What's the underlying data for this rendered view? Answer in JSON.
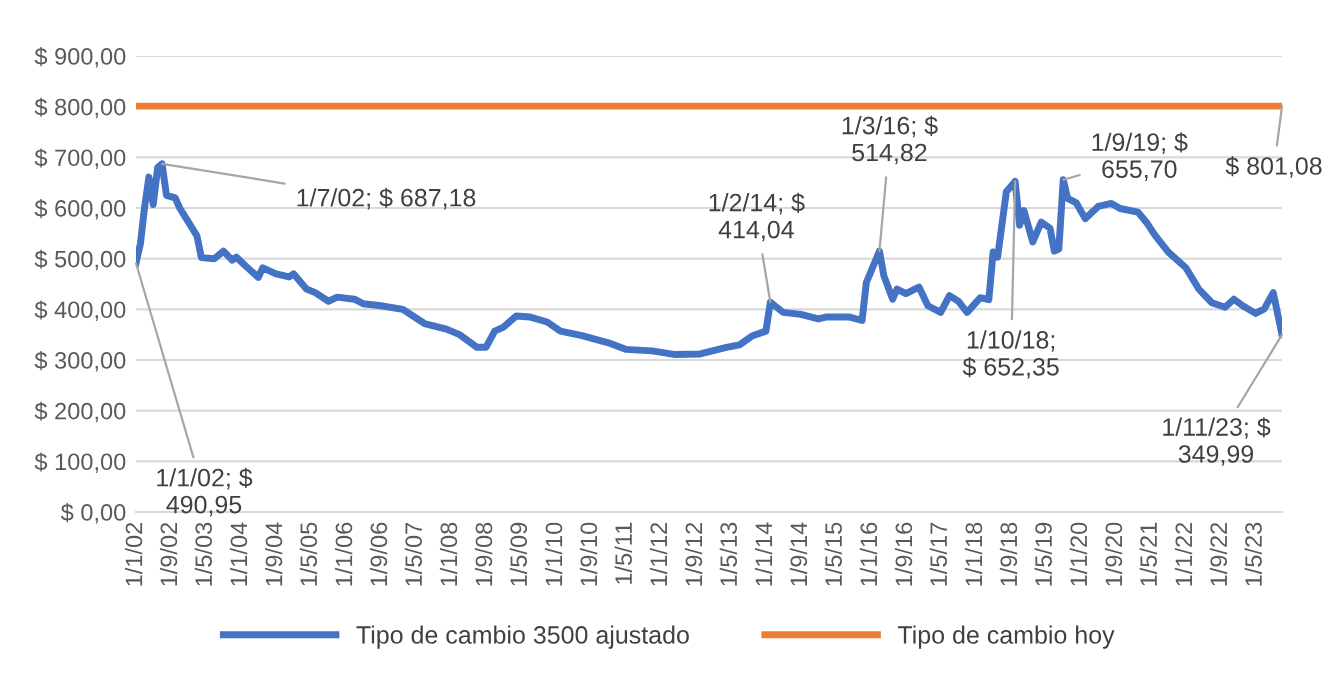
{
  "chart_data": {
    "type": "line",
    "x": [
      "2002-01",
      "2002-02",
      "2002-03",
      "2002-04",
      "2002-05",
      "2002-06",
      "2002-07",
      "2002-08",
      "2002-10",
      "2002-11",
      "2003-01",
      "2003-03",
      "2003-04",
      "2003-07",
      "2003-09",
      "2003-11",
      "2003-12",
      "2004-02",
      "2004-05",
      "2004-06",
      "2004-09",
      "2004-12",
      "2005-01",
      "2005-04",
      "2005-06",
      "2005-09",
      "2005-11",
      "2006-03",
      "2006-05",
      "2006-09",
      "2007-02",
      "2007-07",
      "2007-12",
      "2008-03",
      "2008-07",
      "2008-09",
      "2008-11",
      "2009-01",
      "2009-04",
      "2009-07",
      "2009-11",
      "2010-02",
      "2010-07",
      "2011-01",
      "2011-05",
      "2011-11",
      "2012-04",
      "2012-10",
      "2013-04",
      "2013-07",
      "2013-10",
      "2014-01",
      "2014-02",
      "2014-05",
      "2014-09",
      "2015-01",
      "2015-03",
      "2015-08",
      "2015-11",
      "2015-12",
      "2016-03",
      "2016-04",
      "2016-06",
      "2016-07",
      "2016-09",
      "2016-12",
      "2017-02",
      "2017-05",
      "2017-07",
      "2017-09",
      "2017-11",
      "2018-02",
      "2018-04",
      "2018-05",
      "2018-06",
      "2018-08",
      "2018-10",
      "2018-11",
      "2018-12",
      "2019-02",
      "2019-04",
      "2019-06",
      "2019-07",
      "2019-08",
      "2019-09",
      "2019-10",
      "2019-12",
      "2020-02",
      "2020-05",
      "2020-08",
      "2020-10",
      "2021-02",
      "2021-04",
      "2021-06",
      "2021-09",
      "2022-01",
      "2022-04",
      "2022-07",
      "2022-10",
      "2022-12",
      "2023-02",
      "2023-05",
      "2023-07",
      "2023-09",
      "2023-11"
    ],
    "series": [
      {
        "name": "Tipo de cambio 3500 ajustado",
        "color": "#4472c4",
        "values": [
          490.95,
          530,
          600,
          661,
          607,
          680,
          687.18,
          625,
          620,
          600,
          572,
          545,
          502,
          500,
          515,
          497,
          503,
          486,
          463,
          482,
          470,
          464,
          470,
          440,
          433,
          416,
          424,
          420,
          411,
          407,
          400,
          372,
          361,
          350,
          325,
          325,
          357,
          365,
          387,
          385,
          375,
          357,
          348,
          334,
          321,
          318,
          311,
          312,
          325,
          330,
          348,
          357,
          414.04,
          394,
          390,
          381,
          385,
          385,
          378,
          453,
          514.82,
          466,
          420,
          440,
          431,
          444,
          407,
          394,
          427,
          416,
          394,
          423,
          419,
          513,
          503,
          632,
          652.35,
          566,
          595,
          533,
          572,
          560,
          515,
          519,
          655.7,
          619,
          610,
          579,
          603,
          609,
          599,
          592,
          572,
          546,
          513,
          482,
          440,
          413,
          404,
          420,
          407,
          392,
          401,
          433,
          349.99
        ]
      },
      {
        "name": "Tipo de cambio hoy",
        "color": "#ed7d31",
        "x": [
          "2002-01",
          "2023-11"
        ],
        "values": [
          801.08,
          801.08
        ]
      }
    ],
    "annotations": [
      {
        "text": "1/1/02; $\n490,95",
        "x": "2002-01",
        "y": 490.95
      },
      {
        "text": "1/7/02; $ 687,18",
        "x": "2002-07",
        "y": 687.18
      },
      {
        "text": "1/2/14; $\n414,04",
        "x": "2014-02",
        "y": 414.04
      },
      {
        "text": "1/3/16; $\n514,82",
        "x": "2016-03",
        "y": 514.82
      },
      {
        "text": "1/10/18;\n$ 652,35",
        "x": "2018-10",
        "y": 652.35
      },
      {
        "text": "1/9/19; $\n655,70",
        "x": "2019-09",
        "y": 655.7
      },
      {
        "text": "$ 801,08",
        "x": "2023-11",
        "y": 801.08
      },
      {
        "text": "1/11/23; $\n349,99",
        "x": "2023-11",
        "y": 349.99
      }
    ],
    "xlim": [
      "2002-01",
      "2023-11"
    ],
    "xticks": [
      {
        "value": "2002-01",
        "label": "1/1/02"
      },
      {
        "value": "2002-09",
        "label": "1/9/02"
      },
      {
        "value": "2003-05",
        "label": "1/5/03"
      },
      {
        "value": "2004-01",
        "label": "1/1/04"
      },
      {
        "value": "2004-09",
        "label": "1/9/04"
      },
      {
        "value": "2005-05",
        "label": "1/5/05"
      },
      {
        "value": "2006-01",
        "label": "1/1/06"
      },
      {
        "value": "2006-09",
        "label": "1/9/06"
      },
      {
        "value": "2007-05",
        "label": "1/5/07"
      },
      {
        "value": "2008-01",
        "label": "1/1/08"
      },
      {
        "value": "2008-09",
        "label": "1/9/08"
      },
      {
        "value": "2009-05",
        "label": "1/5/09"
      },
      {
        "value": "2010-01",
        "label": "1/1/10"
      },
      {
        "value": "2010-09",
        "label": "1/9/10"
      },
      {
        "value": "2011-05",
        "label": "1/5/11"
      },
      {
        "value": "2012-01",
        "label": "1/1/12"
      },
      {
        "value": "2012-09",
        "label": "1/9/12"
      },
      {
        "value": "2013-05",
        "label": "1/5/13"
      },
      {
        "value": "2014-01",
        "label": "1/1/14"
      },
      {
        "value": "2014-09",
        "label": "1/9/14"
      },
      {
        "value": "2015-05",
        "label": "1/5/15"
      },
      {
        "value": "2016-01",
        "label": "1/1/16"
      },
      {
        "value": "2016-09",
        "label": "1/9/16"
      },
      {
        "value": "2017-05",
        "label": "1/5/17"
      },
      {
        "value": "2018-01",
        "label": "1/1/18"
      },
      {
        "value": "2018-09",
        "label": "1/9/18"
      },
      {
        "value": "2019-05",
        "label": "1/5/19"
      },
      {
        "value": "2020-01",
        "label": "1/1/20"
      },
      {
        "value": "2020-09",
        "label": "1/9/20"
      },
      {
        "value": "2021-05",
        "label": "1/5/21"
      },
      {
        "value": "2022-01",
        "label": "1/1/22"
      },
      {
        "value": "2022-09",
        "label": "1/9/22"
      },
      {
        "value": "2023-05",
        "label": "1/5/23"
      }
    ],
    "ylim": [
      0,
      900
    ],
    "yticks": [
      {
        "value": 0,
        "label": "$ 0,00"
      },
      {
        "value": 100,
        "label": "$ 100,00"
      },
      {
        "value": 200,
        "label": "$ 200,00"
      },
      {
        "value": 300,
        "label": "$ 300,00"
      },
      {
        "value": 400,
        "label": "$ 400,00"
      },
      {
        "value": 500,
        "label": "$ 500,00"
      },
      {
        "value": 600,
        "label": "$ 600,00"
      },
      {
        "value": 700,
        "label": "$ 700,00"
      },
      {
        "value": 800,
        "label": "$ 800,00"
      },
      {
        "value": 900,
        "label": "$ 900,00"
      }
    ],
    "grid": "y",
    "legend": "bottom"
  }
}
